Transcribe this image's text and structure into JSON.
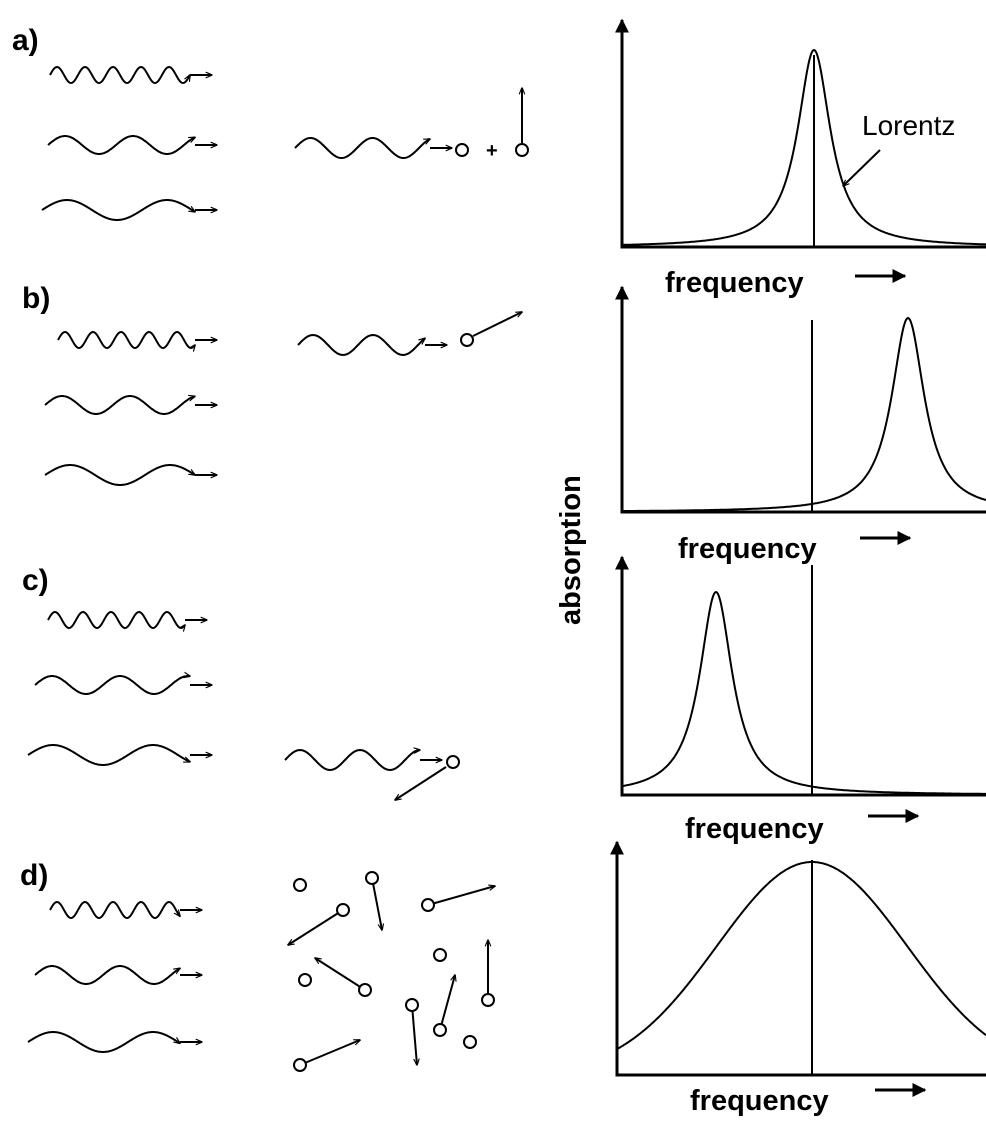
{
  "panels": [
    {
      "label": "a)",
      "x_axis_label": "frequency"
    },
    {
      "label": "b)",
      "x_axis_label": "frequency"
    },
    {
      "label": "c)",
      "x_axis_label": "frequency"
    },
    {
      "label": "d)",
      "x_axis_label": "frequency"
    }
  ],
  "annotation": "Lorentz",
  "y_axis_label": "absorption"
}
